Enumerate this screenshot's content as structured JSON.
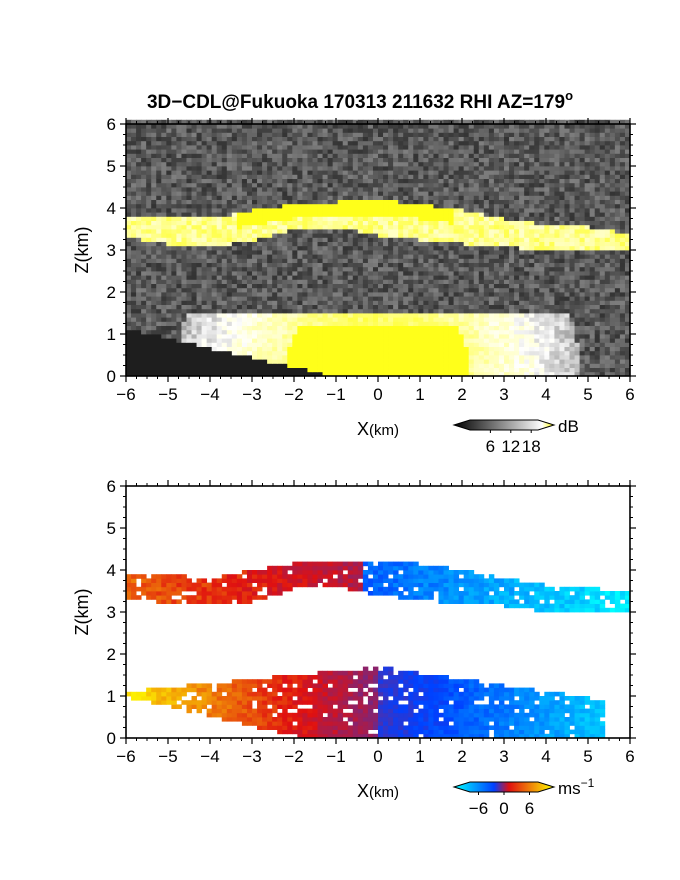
{
  "title": "3D−CDL@Fukuoka 170313 211632 RHI AZ=179",
  "title_sup": "o",
  "chart_data": [
    {
      "type": "heatmap",
      "quantity": "backscatter intensity",
      "xlabel": "X",
      "xlabel_unit": "(km)",
      "ylabel": "Z(km)",
      "xlim": [
        -6,
        6
      ],
      "ylim": [
        0,
        6
      ],
      "x_ticks": [
        "−6",
        "−5",
        "−4",
        "−3",
        "−2",
        "−1",
        "0",
        "1",
        "2",
        "3",
        "4",
        "5",
        "6"
      ],
      "y_ticks": [
        "0",
        "1",
        "2",
        "3",
        "4",
        "5",
        "6"
      ],
      "colorbar": {
        "unit": "dB",
        "ticks": [
          "6",
          "12",
          "18"
        ],
        "range": [
          0,
          20
        ],
        "colors": [
          "#000000",
          "#ffffff",
          "#ffff00"
        ]
      },
      "features": [
        {
          "name": "cloud layer",
          "z_bottom_km": 3.2,
          "z_top_km": 4.1,
          "x_range_km": [
            -6,
            6
          ]
        },
        {
          "name": "near-range boundary layer",
          "z_top_km": 1.4,
          "x_range_km": [
            -4.5,
            4.5
          ]
        }
      ]
    },
    {
      "type": "heatmap",
      "quantity": "radial velocity",
      "xlabel": "X",
      "xlabel_unit": "(km)",
      "ylabel": "Z(km)",
      "xlim": [
        -6,
        6
      ],
      "ylim": [
        0,
        6
      ],
      "x_ticks": [
        "−6",
        "−5",
        "−4",
        "−3",
        "−2",
        "−1",
        "0",
        "1",
        "2",
        "3",
        "4",
        "5",
        "6"
      ],
      "y_ticks": [
        "0",
        "1",
        "2",
        "3",
        "4",
        "5",
        "6"
      ],
      "colorbar": {
        "unit": "ms",
        "unit_sup": "−1",
        "ticks": [
          "−6",
          "0",
          "6"
        ],
        "range": [
          -8,
          8
        ],
        "colors": [
          "#00ffff",
          "#0040ff",
          "#e01010",
          "#ffff00"
        ]
      },
      "features": [
        {
          "name": "cloud layer",
          "z_bottom_km": 3.0,
          "z_top_km": 4.2,
          "x_range_km": [
            -6,
            6
          ]
        },
        {
          "name": "boundary layer",
          "z_top_km": 1.7,
          "x_range_km": [
            -6,
            5.4
          ]
        }
      ]
    }
  ]
}
